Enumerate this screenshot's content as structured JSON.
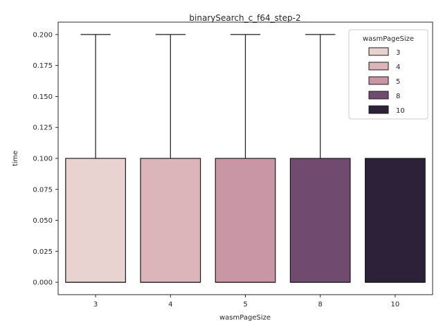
{
  "chart_data": {
    "type": "box",
    "title": "binarySearch_c_f64_step-2",
    "xlabel": "wasmPageSize",
    "ylabel": "time",
    "categories": [
      "3",
      "4",
      "5",
      "8",
      "10"
    ],
    "ylim": [
      -0.01,
      0.21
    ],
    "yticks": [
      "0.000",
      "0.025",
      "0.050",
      "0.075",
      "0.100",
      "0.125",
      "0.150",
      "0.175",
      "0.200"
    ],
    "boxes": [
      {
        "category": "3",
        "whisker_low": 0.0,
        "q1": 0.0,
        "median": 0.0,
        "q3": 0.1,
        "whisker_high": 0.2,
        "color": "#e8d3d0"
      },
      {
        "category": "4",
        "whisker_low": 0.0,
        "q1": 0.0,
        "median": 0.0,
        "q3": 0.1,
        "whisker_high": 0.2,
        "color": "#dcb5bb"
      },
      {
        "category": "5",
        "whisker_low": 0.0,
        "q1": 0.0,
        "median": 0.0,
        "q3": 0.1,
        "whisker_high": 0.2,
        "color": "#c996a6"
      },
      {
        "category": "8",
        "whisker_low": 0.0,
        "q1": 0.0,
        "median": 0.0,
        "q3": 0.1,
        "whisker_high": 0.2,
        "color": "#714a70"
      },
      {
        "category": "10",
        "whisker_low": 0.0,
        "q1": 0.0,
        "median": 0.0,
        "q3": 0.1,
        "whisker_high": 0.1,
        "color": "#2d2039"
      }
    ],
    "legend": {
      "title": "wasmPageSize",
      "placement": "top-right",
      "entries": [
        {
          "label": "3",
          "color": "#e8d3d0"
        },
        {
          "label": "4",
          "color": "#dcb5bb"
        },
        {
          "label": "5",
          "color": "#c996a6"
        },
        {
          "label": "8",
          "color": "#714a70"
        },
        {
          "label": "10",
          "color": "#2d2039"
        }
      ]
    },
    "grid": false
  }
}
